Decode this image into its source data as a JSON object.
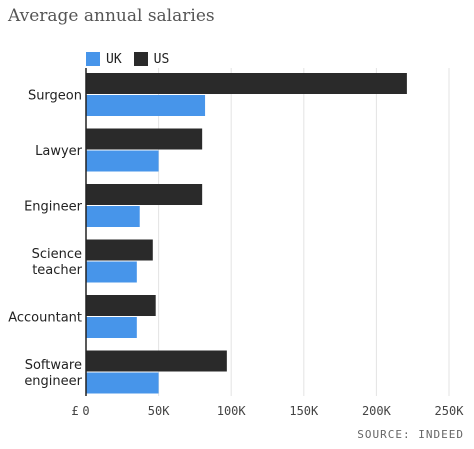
{
  "colors": {
    "uk": "#4795ea",
    "us": "#2a2a2a",
    "grid": "#e3e3e3",
    "axis": "#222222",
    "text": "#222222"
  },
  "chart_data": {
    "type": "bar",
    "orientation": "horizontal",
    "title": "Average annual salaries",
    "categories": [
      [
        "Surgeon"
      ],
      [
        "Lawyer"
      ],
      [
        "Engineer"
      ],
      [
        "Science",
        "teacher"
      ],
      [
        "Accountant"
      ],
      [
        "Software",
        "engineer"
      ]
    ],
    "series": [
      {
        "name": "US",
        "values": [
          221000,
          80000,
          80000,
          46000,
          48000,
          97000
        ]
      },
      {
        "name": "UK",
        "values": [
          82000,
          50000,
          37000,
          35000,
          35000,
          50000
        ]
      }
    ],
    "xlim": [
      0,
      250000
    ],
    "xticks": [
      0,
      50000,
      100000,
      150000,
      200000,
      250000
    ],
    "xtick_labels": [
      "0",
      "50K",
      "100K",
      "150K",
      "200K",
      "250K"
    ],
    "currency_label": "£",
    "grid": true,
    "legend_position": "top-left",
    "legend_order": [
      "UK",
      "US"
    ],
    "source": "SOURCE: INDEED"
  }
}
